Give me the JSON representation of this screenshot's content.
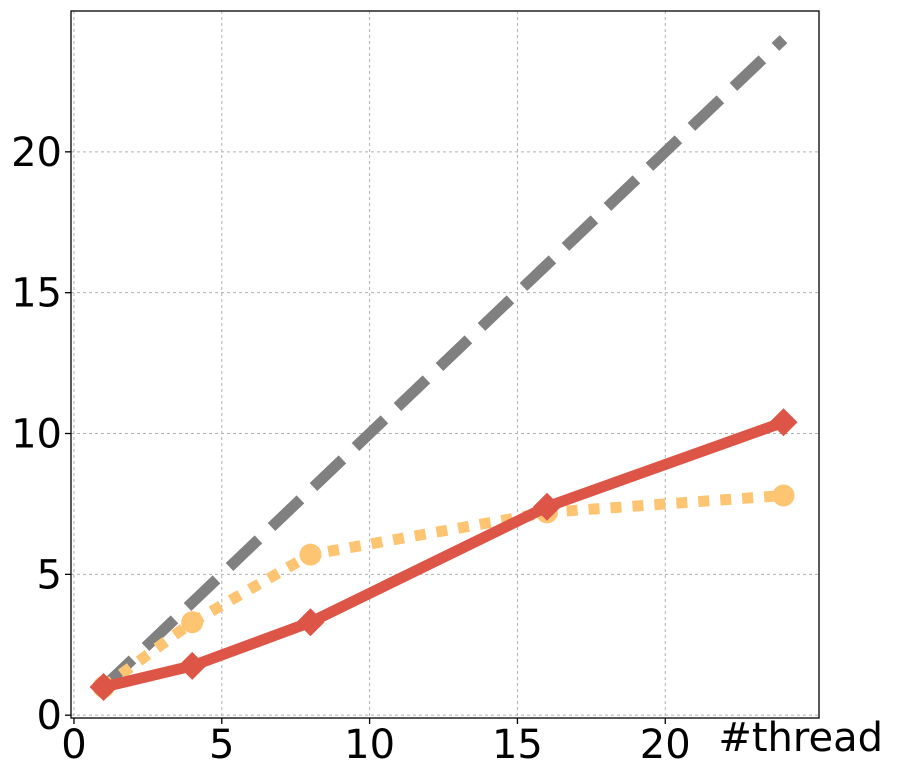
{
  "chart_data": {
    "type": "line",
    "title": "",
    "xlabel": "#thread",
    "ylabel": "",
    "xlim": [
      -0.1,
      25.2
    ],
    "ylim": [
      -0.1,
      25.0
    ],
    "xticks": [
      0,
      5,
      10,
      15,
      20
    ],
    "yticks": [
      0,
      5,
      10,
      15,
      20
    ],
    "xtick_labels": [
      "0",
      "5",
      "10",
      "15",
      "20"
    ],
    "ytick_labels": [
      "0",
      "5",
      "10",
      "15",
      "20"
    ],
    "grid": true,
    "legend": "none",
    "series": [
      {
        "x": [
          1,
          24
        ],
        "y": [
          1,
          24
        ],
        "color": "#808080",
        "line_style": "dashed",
        "marker": "none"
      },
      {
        "x": [
          1,
          4,
          8,
          16,
          24
        ],
        "y": [
          1.0,
          3.3,
          5.7,
          7.2,
          7.8
        ],
        "color": "#FDC472",
        "line_style": "dotted",
        "marker": "circle"
      },
      {
        "x": [
          1,
          4,
          8,
          16,
          24
        ],
        "y": [
          1.0,
          1.75,
          3.3,
          7.4,
          10.4
        ],
        "color": "#DD5546",
        "line_style": "solid",
        "marker": "diamond"
      }
    ]
  }
}
